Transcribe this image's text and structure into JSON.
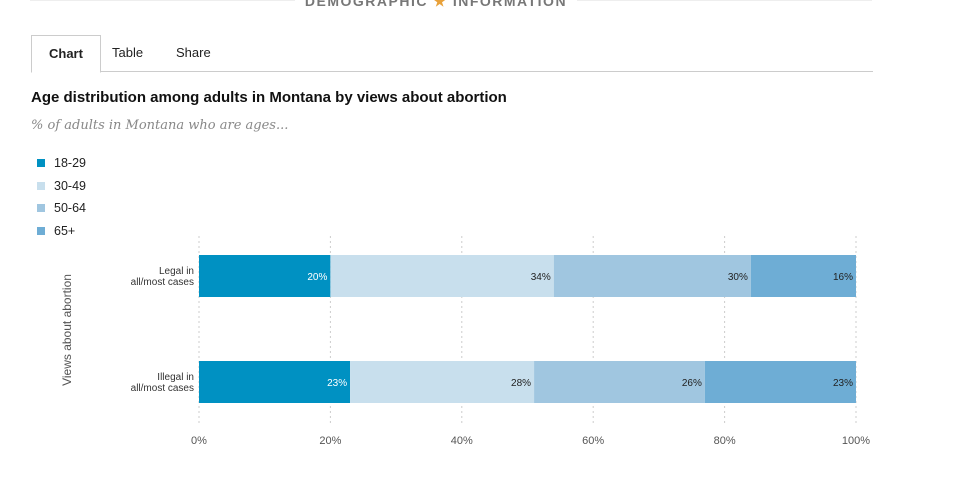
{
  "header": {
    "left": "DEMOGRAPHIC",
    "right": "INFORMATION",
    "icon": "star-icon"
  },
  "tabs": [
    {
      "label": "Chart"
    },
    {
      "label": "Table"
    },
    {
      "label": "Share"
    }
  ],
  "chart_data": {
    "type": "bar",
    "orientation": "horizontal",
    "stacked": true,
    "title": "Age distribution among adults in Montana by views about abortion",
    "subtitle": "% of adults in Montana who are ages...",
    "ylabel": "Views about abortion",
    "categories": [
      "Legal in all/most cases",
      "Illegal in all/most cases"
    ],
    "category_lines": [
      [
        "Legal in",
        "all/most cases"
      ],
      [
        "Illegal in",
        "all/most cases"
      ]
    ],
    "series": [
      {
        "name": "18-29",
        "color": "#0091c2",
        "values": [
          20,
          23
        ]
      },
      {
        "name": "30-49",
        "color": "#c8dfed",
        "values": [
          34,
          28
        ]
      },
      {
        "name": "50-64",
        "color": "#a0c6e0",
        "values": [
          30,
          26
        ]
      },
      {
        "name": "65+",
        "color": "#6eadd5",
        "values": [
          16,
          23
        ]
      }
    ],
    "xlim": [
      0,
      100
    ],
    "xticks": [
      "0%",
      "20%",
      "40%",
      "60%",
      "80%",
      "100%"
    ],
    "grid": true,
    "legend_position": "top-left"
  }
}
